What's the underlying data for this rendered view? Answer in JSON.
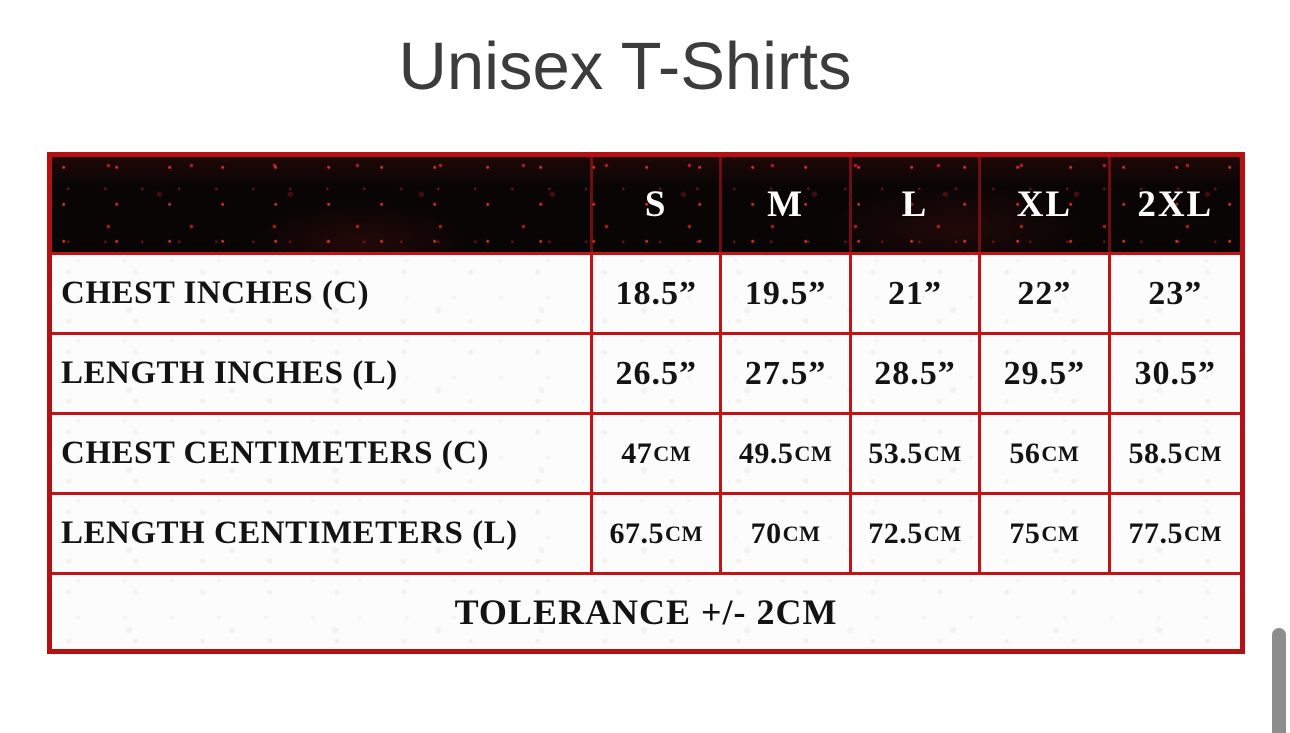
{
  "page": {
    "title": "Unisex T-Shirts"
  },
  "table": {
    "columns": [
      "S",
      "M",
      "L",
      "XL",
      "2XL"
    ],
    "rows": [
      {
        "label": "CHEST INCHES (C)",
        "values": [
          "18.5”",
          "19.5”",
          "21”",
          "22”",
          "23”"
        ]
      },
      {
        "label": "LENGTH INCHES (L)",
        "values": [
          "26.5”",
          "27.5”",
          "28.5”",
          "29.5”",
          "30.5”"
        ]
      },
      {
        "label": "CHEST CENTIMETERS (C)",
        "values": [
          "47CM",
          "49.5CM",
          "53.5CM",
          "56CM",
          "58.5CM"
        ]
      },
      {
        "label": "LENGTH CENTIMETERS (L)",
        "values": [
          "67.5CM",
          "70CM",
          "72.5CM",
          "75CM",
          "77.5CM"
        ]
      }
    ],
    "footer": "TOLERANCE +/- 2CM"
  },
  "colors": {
    "border_red": "#b31114",
    "grid_red": "#c01417",
    "header_background": "#0a0505",
    "header_text": "#ffffff",
    "title_text": "#3c3c3c",
    "scrollbar_thumb": "#8d8d8d"
  },
  "scrollbar": {
    "orientation": "vertical",
    "thumb_position": "bottom"
  }
}
